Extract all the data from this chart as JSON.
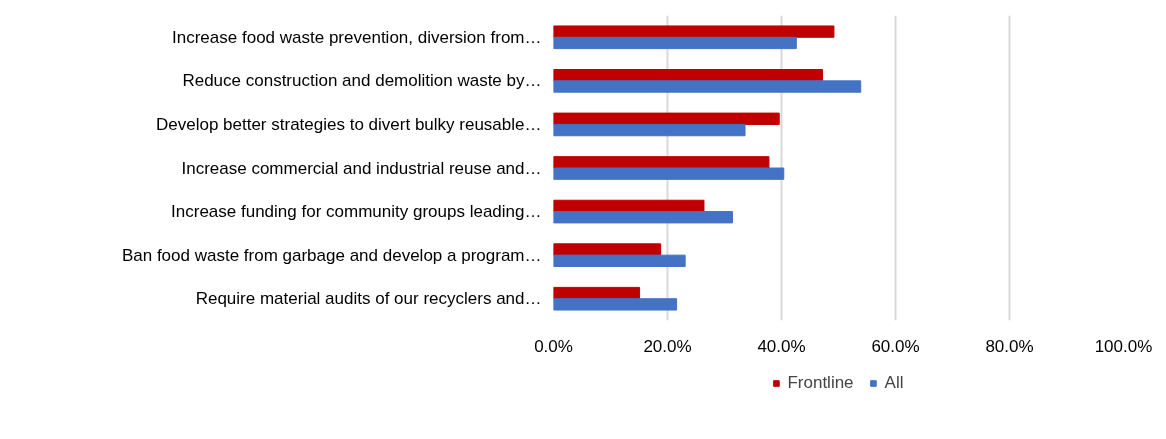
{
  "chart_data": {
    "type": "bar",
    "orientation": "horizontal",
    "categories": [
      "Increase food waste prevention, diversion from…",
      "Reduce construction and demolition waste by…",
      "Develop better strategies to divert bulky reusable…",
      "Increase commercial and industrial reuse and…",
      "Increase funding for community groups leading…",
      "Ban food waste from garbage and develop a program…",
      "Require material audits of our recyclers and…"
    ],
    "series": [
      {
        "name": "Frontline",
        "color": "#c00000",
        "values": [
          49.2,
          47.2,
          39.6,
          37.8,
          26.4,
          18.8,
          15.1
        ]
      },
      {
        "name": "All",
        "color": "#4472c4",
        "values": [
          42.6,
          53.9,
          33.6,
          40.4,
          31.4,
          23.1,
          21.6
        ]
      }
    ],
    "xlim": [
      0,
      100
    ],
    "xticks": [
      {
        "value": 0,
        "label": "0.0%"
      },
      {
        "value": 20,
        "label": "20.0%"
      },
      {
        "value": 40,
        "label": "40.0%"
      },
      {
        "value": 60,
        "label": "60.0%"
      },
      {
        "value": 80,
        "label": "80.0%"
      },
      {
        "value": 100,
        "label": "100.0%"
      }
    ],
    "grid": "x",
    "legend": "bottom"
  }
}
